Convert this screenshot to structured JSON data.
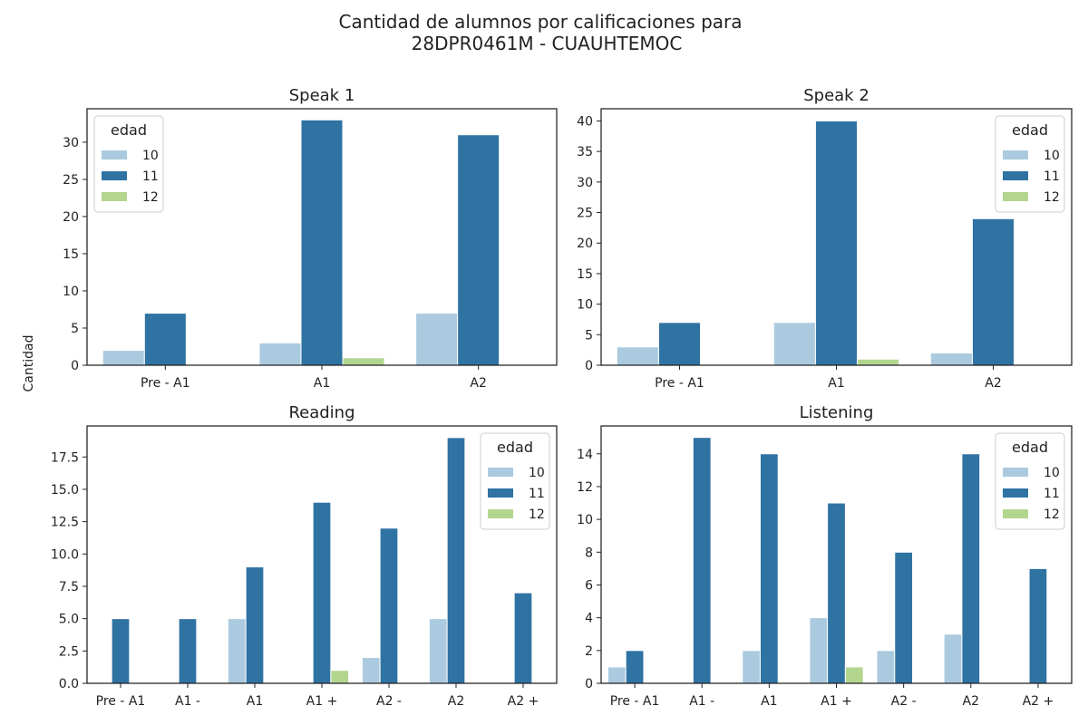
{
  "suptitle": [
    "Cantidad de alumnos por calificaciones para",
    "28DPR0461M - CUAUHTEMOC"
  ],
  "ylabel": "Cantidad",
  "legend": {
    "title": "edad",
    "entries": [
      "10",
      "11",
      "12"
    ]
  },
  "colors": {
    "10": "#abcadf",
    "11": "#2f73a3",
    "12": "#b3d68f"
  },
  "chart_data": [
    {
      "type": "bar",
      "title": "Speak 1",
      "categories": [
        "Pre - A1",
        "A1",
        "A2"
      ],
      "series": [
        {
          "name": "10",
          "values": [
            2,
            3,
            7
          ]
        },
        {
          "name": "11",
          "values": [
            7,
            33,
            31
          ]
        },
        {
          "name": "12",
          "values": [
            0,
            1,
            0
          ]
        }
      ],
      "ylim": [
        0,
        34.5
      ],
      "yticks": [
        0,
        5,
        10,
        15,
        20,
        25,
        30
      ],
      "legend_loc": "top-left"
    },
    {
      "type": "bar",
      "title": "Speak 2",
      "categories": [
        "Pre - A1",
        "A1",
        "A2"
      ],
      "series": [
        {
          "name": "10",
          "values": [
            3,
            7,
            2
          ]
        },
        {
          "name": "11",
          "values": [
            7,
            40,
            24
          ]
        },
        {
          "name": "12",
          "values": [
            0,
            1,
            0
          ]
        }
      ],
      "ylim": [
        0,
        42
      ],
      "yticks": [
        0,
        5,
        10,
        15,
        20,
        25,
        30,
        35,
        40
      ],
      "legend_loc": "top-right"
    },
    {
      "type": "bar",
      "title": "Reading",
      "categories": [
        "Pre - A1",
        "A1 -",
        "A1",
        "A1 +",
        "A2 -",
        "A2",
        "A2 +"
      ],
      "series": [
        {
          "name": "10",
          "values": [
            0,
            0,
            5,
            0,
            2,
            5,
            0
          ]
        },
        {
          "name": "11",
          "values": [
            5,
            5,
            9,
            14,
            12,
            19,
            7
          ]
        },
        {
          "name": "12",
          "values": [
            0,
            0,
            0,
            1,
            0,
            0,
            0
          ]
        }
      ],
      "ylim": [
        0,
        19.9
      ],
      "yticks": [
        "0.0",
        "2.5",
        "5.0",
        "7.5",
        "10.0",
        "12.5",
        "15.0",
        "17.5"
      ],
      "legend_loc": "top-right"
    },
    {
      "type": "bar",
      "title": "Listening",
      "categories": [
        "Pre - A1",
        "A1 -",
        "A1",
        "A1 +",
        "A2 -",
        "A2",
        "A2 +"
      ],
      "series": [
        {
          "name": "10",
          "values": [
            1,
            0,
            2,
            4,
            2,
            3,
            0
          ]
        },
        {
          "name": "11",
          "values": [
            2,
            15,
            14,
            11,
            8,
            14,
            7
          ]
        },
        {
          "name": "12",
          "values": [
            0,
            0,
            0,
            1,
            0,
            0,
            0
          ]
        }
      ],
      "ylim": [
        0,
        15.7
      ],
      "yticks": [
        0,
        2,
        4,
        6,
        8,
        10,
        12,
        14
      ],
      "legend_loc": "top-right"
    }
  ]
}
